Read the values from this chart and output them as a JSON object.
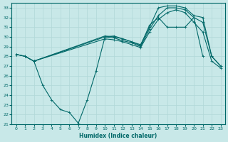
{
  "xlabel": "Humidex (Indice chaleur)",
  "background_color": "#c8e8e8",
  "grid_color": "#b0d8d8",
  "line_color": "#006868",
  "xlim": [
    -0.5,
    23.5
  ],
  "ylim": [
    21,
    33.5
  ],
  "yticks": [
    21,
    22,
    23,
    24,
    25,
    26,
    27,
    28,
    29,
    30,
    31,
    32,
    33
  ],
  "xticks": [
    0,
    1,
    2,
    3,
    4,
    5,
    6,
    7,
    8,
    9,
    10,
    11,
    12,
    13,
    14,
    15,
    16,
    17,
    18,
    19,
    20,
    21,
    22,
    23
  ],
  "line1_x": [
    0,
    1,
    2,
    10,
    11,
    12,
    13,
    14,
    15,
    16,
    17,
    18,
    19,
    20,
    21,
    22,
    23
  ],
  "line1_y": [
    28.2,
    28.0,
    27.5,
    30.1,
    30.0,
    29.8,
    29.5,
    29.2,
    31.0,
    33.0,
    33.2,
    33.2,
    33.0,
    32.2,
    32.0,
    28.0,
    27.0
  ],
  "line2_x": [
    0,
    1,
    2,
    10,
    11,
    12,
    13,
    14,
    15,
    16,
    17,
    18,
    19,
    20,
    21,
    22,
    23
  ],
  "line2_y": [
    28.2,
    28.0,
    27.5,
    30.0,
    29.9,
    29.6,
    29.4,
    29.0,
    30.8,
    32.2,
    33.0,
    33.0,
    32.8,
    32.0,
    31.5,
    28.0,
    27.0
  ],
  "line3_x": [
    0,
    1,
    2,
    10,
    11,
    12,
    13,
    14,
    15,
    16,
    17,
    18,
    19,
    20,
    21,
    22,
    23
  ],
  "line3_y": [
    28.2,
    28.0,
    27.5,
    29.8,
    29.7,
    29.5,
    29.2,
    28.9,
    30.5,
    31.8,
    32.5,
    32.8,
    32.5,
    31.5,
    30.5,
    27.5,
    26.8
  ],
  "line4_x": [
    2,
    3,
    4,
    5,
    6,
    7,
    8,
    9,
    10,
    11,
    12,
    13,
    14,
    15,
    16,
    17,
    18,
    19,
    20,
    21,
    22,
    23
  ],
  "line4_y": [
    27.5,
    25.0,
    23.5,
    22.5,
    22.2,
    21.1,
    23.5,
    26.5,
    30.0,
    30.1,
    29.8,
    29.5,
    29.1,
    31.2,
    32.0,
    31.0,
    31.0,
    31.0,
    32.0,
    28.0,
    null,
    null
  ]
}
